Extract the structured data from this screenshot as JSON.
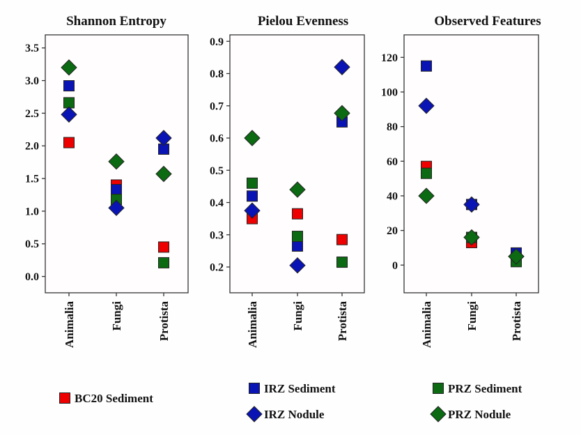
{
  "chart_data": [
    {
      "type": "scatter",
      "title": "Shannon Entropy",
      "xlabel": "",
      "ylabel": "",
      "categories": [
        "Animalia",
        "Fungi",
        "Protista"
      ],
      "ylim": [
        -0.25,
        3.7
      ],
      "yticks": [
        0.0,
        0.5,
        1.0,
        1.5,
        2.0,
        2.5,
        3.0,
        3.5
      ],
      "ytick_labels": [
        "0.0",
        "0.5",
        "1.0",
        "1.5",
        "2.0",
        "2.5",
        "3.0",
        "3.5"
      ],
      "grid": false,
      "series": [
        {
          "name": "BC20 Sediment",
          "values": [
            2.05,
            1.4,
            0.45
          ]
        },
        {
          "name": "IRZ Sediment",
          "values": [
            2.92,
            1.33,
            1.95
          ]
        },
        {
          "name": "PRZ Sediment",
          "values": [
            2.66,
            1.18,
            0.21
          ]
        },
        {
          "name": "IRZ Nodule",
          "values": [
            2.48,
            1.05,
            2.12
          ]
        },
        {
          "name": "PRZ Nodule",
          "values": [
            3.2,
            1.76,
            1.57
          ]
        }
      ]
    },
    {
      "type": "scatter",
      "title": "Pielou Evenness",
      "xlabel": "",
      "ylabel": "",
      "categories": [
        "Animalia",
        "Fungi",
        "Protista"
      ],
      "ylim": [
        0.12,
        0.92
      ],
      "yticks": [
        0.2,
        0.3,
        0.4,
        0.5,
        0.6,
        0.7,
        0.8,
        0.9
      ],
      "ytick_labels": [
        "0.2",
        "0.3",
        "0.4",
        "0.5",
        "0.6",
        "0.7",
        "0.8",
        "0.9"
      ],
      "grid": false,
      "series": [
        {
          "name": "BC20 Sediment",
          "values": [
            0.35,
            0.365,
            0.285
          ]
        },
        {
          "name": "IRZ Sediment",
          "values": [
            0.42,
            0.265,
            0.65
          ]
        },
        {
          "name": "PRZ Sediment",
          "values": [
            0.46,
            0.295,
            0.215
          ]
        },
        {
          "name": "IRZ Nodule",
          "values": [
            0.375,
            0.205,
            0.82
          ]
        },
        {
          "name": "PRZ Nodule",
          "values": [
            0.6,
            0.44,
            0.677
          ]
        }
      ]
    },
    {
      "type": "scatter",
      "title": "Observed Features",
      "xlabel": "",
      "ylabel": "",
      "categories": [
        "Animalia",
        "Fungi",
        "Protista"
      ],
      "ylim": [
        -16,
        133
      ],
      "yticks": [
        0,
        20,
        40,
        60,
        80,
        100,
        120
      ],
      "ytick_labels": [
        "0",
        "20",
        "40",
        "60",
        "80",
        "100",
        "120"
      ],
      "grid": false,
      "series": [
        {
          "name": "BC20 Sediment",
          "values": [
            57,
            13,
            4
          ]
        },
        {
          "name": "IRZ Sediment",
          "values": [
            115,
            35,
            7
          ]
        },
        {
          "name": "PRZ Sediment",
          "values": [
            53,
            16,
            2
          ]
        },
        {
          "name": "IRZ Nodule",
          "values": [
            92,
            35,
            5
          ]
        },
        {
          "name": "PRZ Nodule",
          "values": [
            40,
            16,
            5
          ]
        }
      ]
    }
  ],
  "legend": {
    "placement": "bottom",
    "items": [
      {
        "name": "BC20 Sediment",
        "marker": "square",
        "color": "#ee0000"
      },
      {
        "name": "IRZ Sediment",
        "marker": "square",
        "color": "#0a14b4"
      },
      {
        "name": "IRZ Nodule",
        "marker": "diamond",
        "color": "#0a14b4"
      },
      {
        "name": "PRZ Sediment",
        "marker": "square",
        "color": "#0b6a12"
      },
      {
        "name": "PRZ Nodule",
        "marker": "diamond",
        "color": "#0b6a12"
      }
    ]
  }
}
